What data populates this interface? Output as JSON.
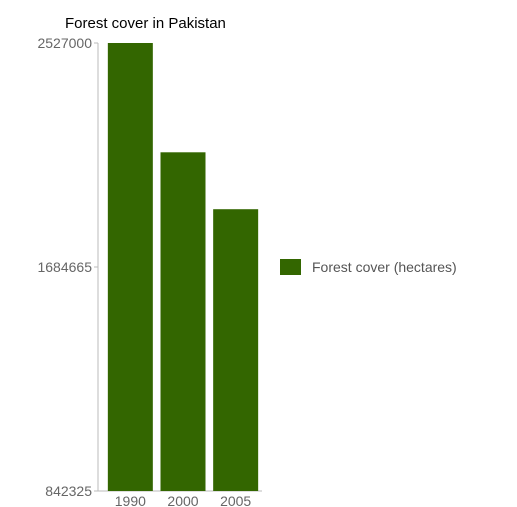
{
  "chart_data": {
    "type": "bar",
    "title": "Forest cover in Pakistan",
    "categories": [
      "1990",
      "2000",
      "2005"
    ],
    "series": [
      {
        "name": "Forest cover (hectares)",
        "values": [
          2527000,
          2116000,
          1902000
        ]
      }
    ],
    "ylim": [
      842325,
      2527000
    ],
    "yticks": [
      842325,
      1684665,
      2527000
    ],
    "ytick_labels": [
      "842325",
      "1684665",
      "2527000"
    ],
    "grid": false,
    "legend_position": "right",
    "colors": {
      "bar": "#336600",
      "axis": "#bbbbbb"
    }
  }
}
